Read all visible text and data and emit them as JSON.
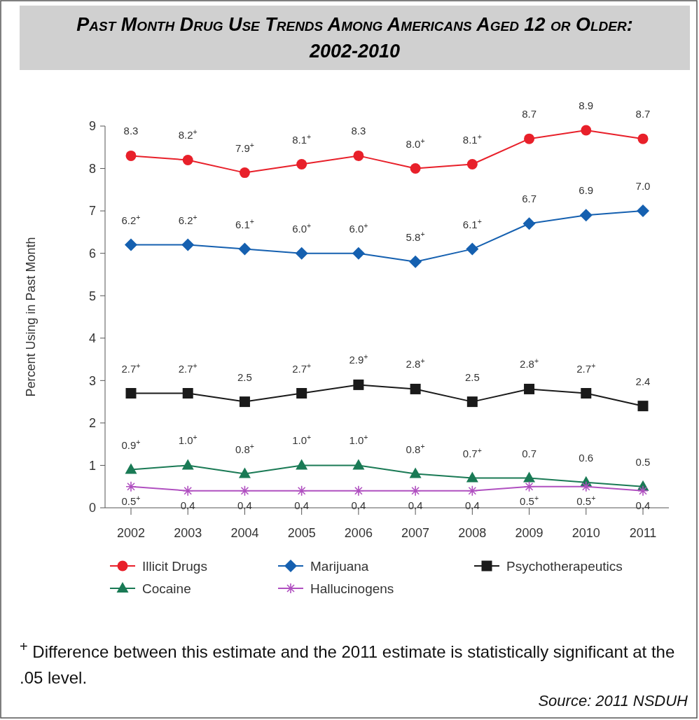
{
  "chart_data": {
    "type": "line",
    "title": "Past Month Drug Use Trends Among Americans Aged 12 or Older: 2002-2010",
    "ylabel": "Percent Using in Past Month",
    "categories": [
      "2002",
      "2003",
      "2004",
      "2005",
      "2006",
      "2007",
      "2008",
      "2009",
      "2010",
      "2011"
    ],
    "ylim": [
      0,
      9
    ],
    "yticks": [
      0,
      1,
      2,
      3,
      4,
      5,
      6,
      7,
      8,
      9
    ],
    "grid": false,
    "legend": "bottom",
    "series": [
      {
        "name": "Illicit Drugs",
        "color": "#e8202a",
        "marker": "circle",
        "values": [
          8.3,
          8.2,
          7.9,
          8.1,
          8.3,
          8.0,
          8.1,
          8.7,
          8.9,
          8.7
        ],
        "value_labels": [
          "8.3",
          "8.2$^{+}$",
          "7.9$^{+}$",
          "8.1$^{+}$",
          "8.3",
          "8.0$^{+}$",
          "8.1$^{+}$",
          "8.7",
          "8.9",
          "8.7"
        ]
      },
      {
        "name": "Marijuana",
        "color": "#1560b0",
        "marker": "diamond",
        "values": [
          6.2,
          6.2,
          6.1,
          6.0,
          6.0,
          5.8,
          6.1,
          6.7,
          6.9,
          7.0
        ],
        "value_labels": [
          "6.2$^{+}$",
          "6.2$^{+}$",
          "6.1$^{+}$",
          "6.0$^{+}$",
          "6.0$^{+}$",
          "5.8$^{+}$",
          "6.1$^{+}$",
          "6.7",
          "6.9",
          "7.0"
        ]
      },
      {
        "name": "Psychotherapeutics",
        "color": "#1a1a1a",
        "marker": "square",
        "values": [
          2.7,
          2.7,
          2.5,
          2.7,
          2.9,
          2.8,
          2.5,
          2.8,
          2.7,
          2.4
        ],
        "value_labels": [
          "2.7$^{+}$",
          "2.7$^{+}$",
          "2.5",
          "2.7$^{+}$",
          "2.9$^{+}$",
          "2.8$^{+}$",
          "2.5",
          "2.8$^{+}$",
          "2.7$^{+}$",
          "2.4"
        ]
      },
      {
        "name": "Cocaine",
        "color": "#1a7a55",
        "marker": "triangle",
        "values": [
          0.9,
          1.0,
          0.8,
          1.0,
          1.0,
          0.8,
          0.7,
          0.7,
          0.6,
          0.5
        ],
        "value_labels": [
          "0.9$^{+}$",
          "1.0$^{+}$",
          "0.8$^{+}$",
          "1.0$^{+}$",
          "1.0$^{+}$",
          "0.8$^{+}$",
          "0.7$^{+}$",
          "0.7",
          "0.6",
          "0.5"
        ]
      },
      {
        "name": "Hallucinogens",
        "color": "#b050c0",
        "marker": "cross",
        "values": [
          0.5,
          0.4,
          0.4,
          0.4,
          0.4,
          0.4,
          0.4,
          0.5,
          0.5,
          0.4
        ],
        "value_labels": [
          "0.5$^{+}$",
          "0.4",
          "0.4",
          "0.4",
          "0.4",
          "0.4",
          "0.4",
          "0.5$^{+}$",
          "0.5$^{+}$",
          "0.4"
        ]
      }
    ],
    "annotations": [
      "$^{+}$ Difference between this estimate and the 2011 estimate is statistically significant at the .05 level.",
      "Source:  2011 NSDUH"
    ]
  }
}
